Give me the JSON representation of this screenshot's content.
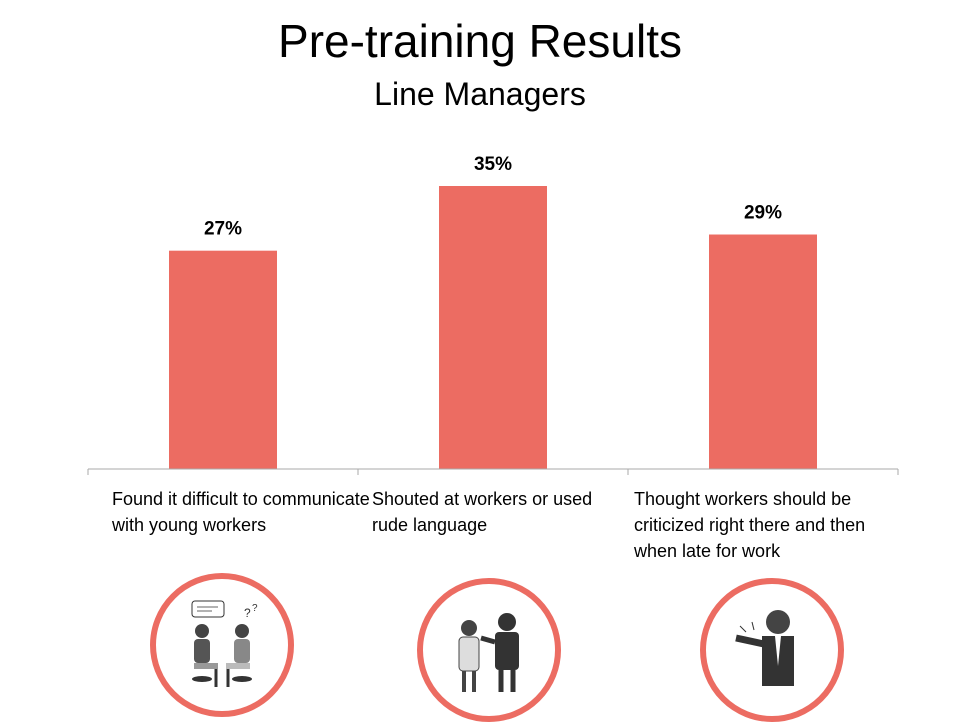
{
  "header": {
    "title": "Pre-training Results",
    "subtitle": "Line Managers"
  },
  "chart_data": {
    "type": "bar",
    "categories": [
      "Found it difficult to communicate with young workers",
      "Shouted at workers or used rude language",
      "Thought workers should be criticized right there and then when late for work"
    ],
    "values": [
      27,
      35,
      29
    ],
    "data_labels": [
      "27%",
      "35%",
      "29%"
    ],
    "unit": "%",
    "ylim": [
      0,
      35
    ],
    "grid": false,
    "bar_color": "#EC6C62"
  },
  "illustrations": [
    "two-people-talking-confused-icon",
    "manager-shouting-at-worker-icon",
    "angry-manager-pointing-icon"
  ],
  "accent_color": "#EC6C62"
}
